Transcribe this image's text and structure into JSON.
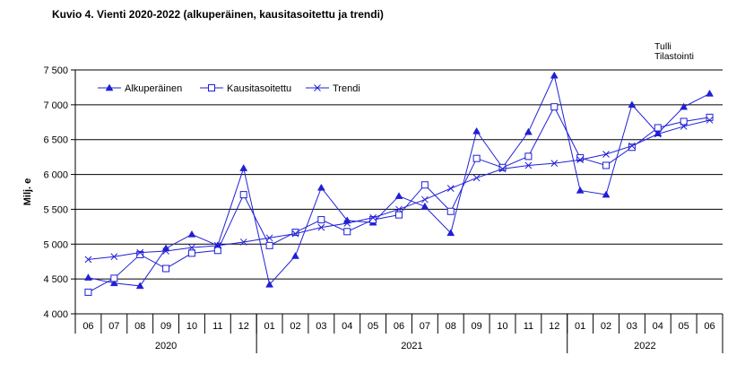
{
  "title": "Kuvio  4. Vienti 2020-2022 (alkuperäinen, kausitasoitettu ja trendi)",
  "source": [
    "Tulli",
    "Tilastointi"
  ],
  "colors": {
    "series": "#1f1fd8",
    "grid": "#000000",
    "axis": "#000000"
  },
  "chart_data": {
    "type": "line",
    "ylabel": "Milj. e",
    "ylim": [
      4000,
      7500
    ],
    "yticks": [
      4000,
      4500,
      5000,
      5500,
      6000,
      6500,
      7000,
      7500
    ],
    "ytick_labels": [
      "4 000",
      "4 500",
      "5 000",
      "5 500",
      "6 000",
      "6 500",
      "7 000",
      "7 500"
    ],
    "grid": "horizontal",
    "legend_position": "top-left",
    "categories": [
      "06",
      "07",
      "08",
      "09",
      "10",
      "11",
      "12",
      "01",
      "02",
      "03",
      "04",
      "05",
      "06",
      "07",
      "08",
      "09",
      "10",
      "11",
      "12",
      "01",
      "02",
      "03",
      "04",
      "05",
      "06"
    ],
    "years": [
      {
        "label": "2020",
        "months": 7
      },
      {
        "label": "2021",
        "months": 12
      },
      {
        "label": "2022",
        "months": 6
      }
    ],
    "series": [
      {
        "name": "Alkuperäinen",
        "marker": "filled-triangle",
        "values": [
          4520,
          4440,
          4400,
          4940,
          5140,
          4980,
          6090,
          4420,
          4830,
          5810,
          5340,
          5310,
          5690,
          5540,
          5160,
          6620,
          6100,
          6610,
          7420,
          5770,
          5710,
          7000,
          6590,
          6970,
          7160
        ]
      },
      {
        "name": "Kausitasoitettu",
        "marker": "open-square",
        "values": [
          4310,
          4510,
          4850,
          4650,
          4870,
          4910,
          5710,
          4980,
          5170,
          5350,
          5180,
          5350,
          5420,
          5850,
          5470,
          6230,
          6100,
          6260,
          6970,
          6240,
          6130,
          6390,
          6670,
          6760,
          6820
        ]
      },
      {
        "name": "Trendi",
        "marker": "x",
        "values": [
          4780,
          4820,
          4880,
          4900,
          4950,
          4980,
          5030,
          5090,
          5150,
          5240,
          5300,
          5380,
          5500,
          5640,
          5800,
          5950,
          6080,
          6130,
          6160,
          6210,
          6290,
          6410,
          6580,
          6690,
          6780
        ]
      }
    ]
  }
}
